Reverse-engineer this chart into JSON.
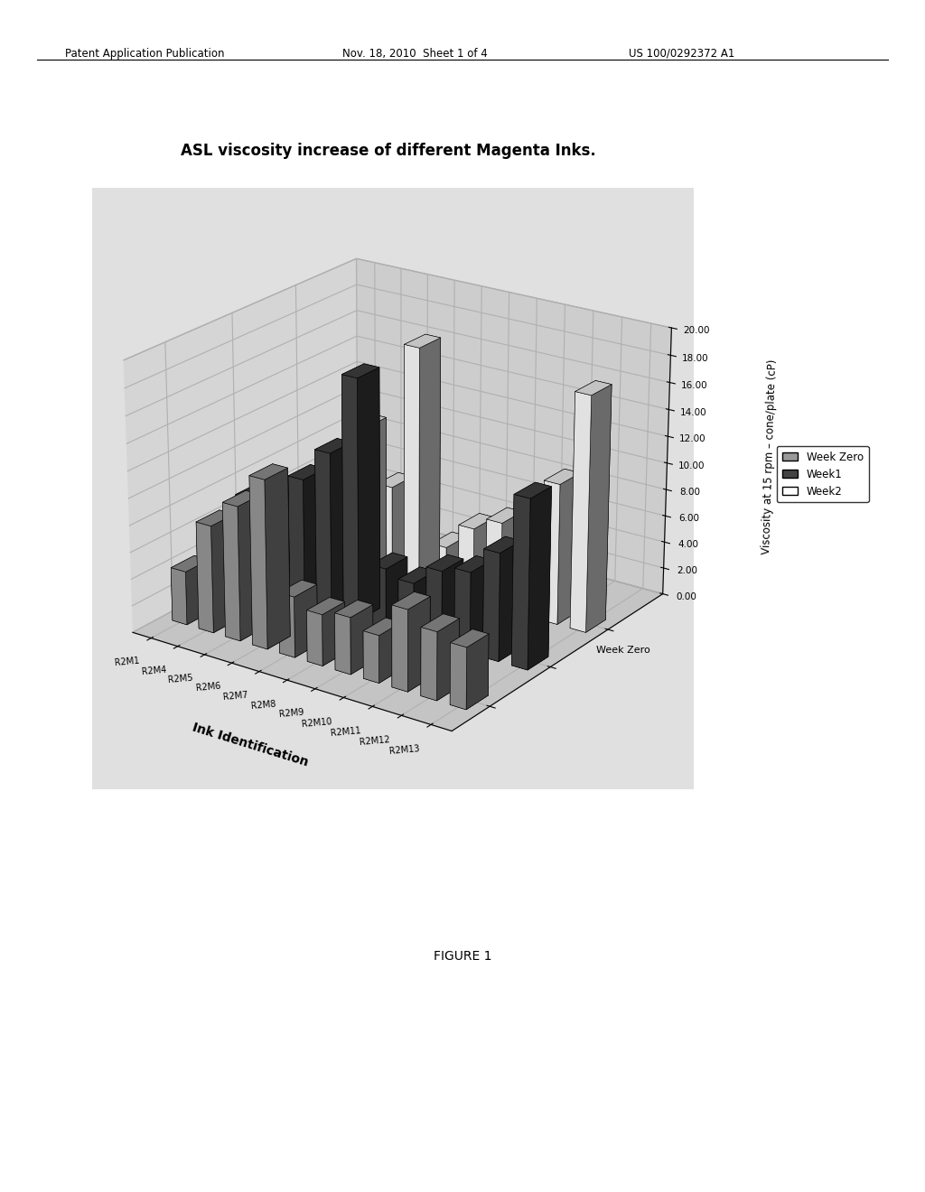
{
  "title": "ASL viscosity increase of different Magenta Inks.",
  "ylabel": "Viscosity at 15 rpm – cone/plate (cP)",
  "xlabel": "Ink Identification",
  "depth_label": "Week Zero",
  "categories": [
    "R2M1",
    "R2M4",
    "R2M5",
    "R2M6",
    "R2M7",
    "R2M8",
    "R2M9",
    "R2M10",
    "R2M11",
    "R2M12",
    "R2M13"
  ],
  "series_labels": [
    "Week Zero",
    "Week1",
    "Week2"
  ],
  "week_zero": [
    4.0,
    8.0,
    10.0,
    12.5,
    4.5,
    3.8,
    4.2,
    3.5,
    6.0,
    5.0,
    4.5
  ],
  "week1": [
    7.0,
    7.0,
    9.5,
    12.0,
    18.0,
    4.5,
    4.0,
    5.5,
    6.0,
    8.0,
    12.5
  ],
  "week2": [
    4.0,
    6.5,
    11.0,
    7.0,
    18.0,
    3.5,
    5.5,
    6.5,
    6.5,
    10.5,
    17.5
  ],
  "ylim": [
    0,
    20
  ],
  "yticks": [
    0.0,
    2.0,
    4.0,
    6.0,
    8.0,
    10.0,
    12.0,
    14.0,
    16.0,
    18.0,
    20.0
  ],
  "header_left": "Patent Application Publication",
  "header_mid": "Nov. 18, 2010  Sheet 1 of 4",
  "header_right": "US 100/0292372 A1",
  "figure_label": "FIGURE 1",
  "elev": 22,
  "azim": -55,
  "bar_width": 0.55,
  "bar_depth": 0.35,
  "color_week_zero": "#999999",
  "color_week1": "#444444",
  "color_week2": "#ffffff",
  "pane_color_back": "#cccccc",
  "pane_color_side": "#bbbbbb",
  "pane_color_bottom": "#aaaaaa"
}
